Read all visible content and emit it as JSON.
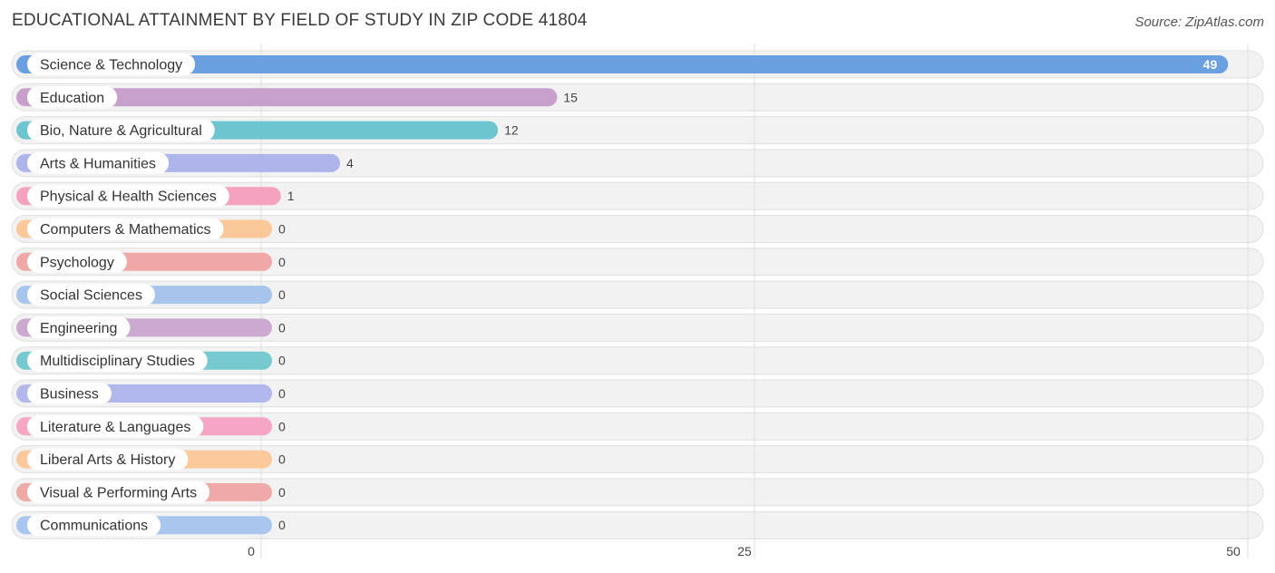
{
  "header": {
    "title": "EDUCATIONAL ATTAINMENT BY FIELD OF STUDY IN ZIP CODE 41804",
    "source": "Source: ZipAtlas.com"
  },
  "chart_data": {
    "type": "bar",
    "orientation": "horizontal",
    "title": "EDUCATIONAL ATTAINMENT BY FIELD OF STUDY IN ZIP CODE 41804",
    "categories": [
      "Science & Technology",
      "Education",
      "Bio, Nature & Agricultural",
      "Arts & Humanities",
      "Physical & Health Sciences",
      "Computers & Mathematics",
      "Psychology",
      "Social Sciences",
      "Engineering",
      "Multidisciplinary Studies",
      "Business",
      "Literature & Languages",
      "Liberal Arts & History",
      "Visual & Performing Arts",
      "Communications"
    ],
    "values": [
      49,
      15,
      12,
      4,
      1,
      0,
      0,
      0,
      0,
      0,
      0,
      0,
      0,
      0,
      0
    ],
    "colors": [
      "#6a9fe0",
      "#c8a0cc",
      "#6cc5cf",
      "#aeb5ea",
      "#f4a2bf",
      "#fbc89a",
      "#f0a8a6",
      "#a7c5ec",
      "#cba9d0",
      "#76c9cf",
      "#b2b8ec",
      "#f6a6c4",
      "#fbc99b",
      "#efaaa7",
      "#a9c6ef"
    ],
    "xlim": [
      0,
      50
    ],
    "xticks": [
      0,
      25,
      50
    ],
    "grid": true
  }
}
